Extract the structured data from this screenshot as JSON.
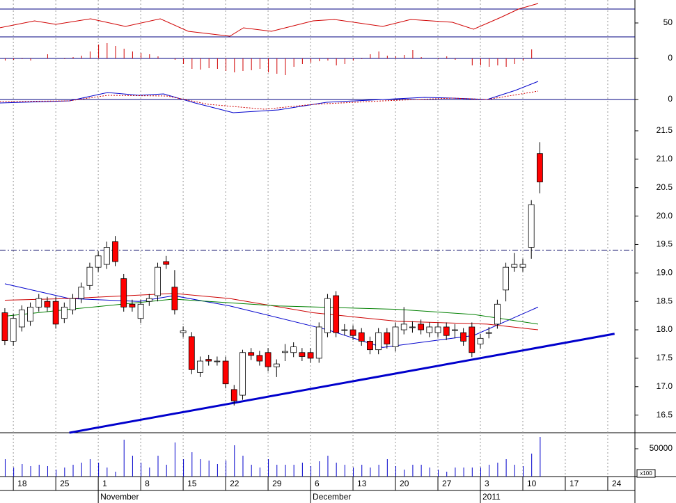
{
  "chart_data": [
    {
      "type": "line",
      "ylim": [
        30,
        83
      ],
      "yticks": [
        50
      ],
      "reference_lines": [
        70,
        30
      ],
      "series": [
        {
          "color": "#d00000",
          "x": [
            -0.6,
            3.5,
            6,
            10.1,
            14.2,
            18.3,
            21.6,
            26.5,
            28.1,
            31.4,
            36.3,
            38.8,
            44.5,
            47.8,
            52.7,
            55.2,
            58.4,
            60.5,
            62.8
          ],
          "values": [
            43,
            53,
            48,
            56,
            45,
            56,
            38,
            31,
            43,
            38,
            53,
            55,
            45,
            55,
            51,
            41,
            58,
            70,
            78
          ]
        }
      ]
    },
    {
      "type": "bar",
      "color": "#d00000",
      "ylim": [
        -29,
        31
      ],
      "yticks": [
        0
      ],
      "reference_lines": [
        0
      ],
      "values": [
        -3,
        -2,
        -1,
        -3,
        0,
        6,
        0,
        -1,
        2,
        4,
        10,
        20,
        22,
        18,
        14,
        10,
        8,
        6,
        3,
        0,
        -2,
        -8,
        -15,
        -16,
        -14,
        -15,
        -18,
        -20,
        -18,
        -17,
        -15,
        -20,
        -22,
        -24,
        -12,
        -8,
        -6,
        -4,
        -3,
        -10,
        -8,
        -3,
        -1,
        6,
        10,
        4,
        3,
        5,
        12,
        2,
        0,
        -1,
        3,
        -2,
        0,
        -10,
        -10,
        -12,
        -10,
        -12,
        -8,
        -3,
        13,
        null
      ]
    },
    {
      "type": "line",
      "ylim": [
        -27,
        30
      ],
      "yticks": [
        0
      ],
      "reference_lines": [
        0
      ],
      "series": [
        {
          "color": "#0000cc",
          "x": [
            -0.6,
            7.6,
            12.1,
            15.8,
            18.7,
            22.4,
            26.9,
            32.2,
            37.9,
            44.5,
            49.4,
            52.7,
            56.8,
            60.1,
            62.8
          ],
          "values": [
            -5,
            -2,
            10,
            6,
            8,
            -5,
            -19,
            -15,
            -4,
            0,
            3,
            2,
            0,
            13,
            26
          ]
        },
        {
          "color": "#d00000",
          "dash": true,
          "x": [
            -0.6,
            7.6,
            12.1,
            19.1,
            24,
            30.6,
            36.3,
            44.5,
            52.7,
            56.8,
            62.8
          ],
          "values": [
            -3,
            -2,
            6,
            5,
            -7,
            -14,
            -7,
            -2,
            2,
            0,
            12
          ]
        }
      ]
    },
    {
      "type": "candlestick",
      "up_color": "#ffffff",
      "down_color": "#ff0000",
      "ylim": [
        16.19,
        21.72
      ],
      "yticks": [
        16.5,
        {
          "value": 17,
          "label": "17.0"
        },
        17.5,
        {
          "value": 18,
          "label": "18.0"
        },
        18.5,
        {
          "value": 19,
          "label": "19.0"
        },
        19.5,
        {
          "value": 20,
          "label": "20.0"
        },
        20.5,
        {
          "value": 21,
          "label": "21.0"
        },
        21.5
      ],
      "reference_lines": [
        19.4
      ],
      "open": [
        18.3,
        17.8,
        18.05,
        18.15,
        18.4,
        18.5,
        18.5,
        18.2,
        18.35,
        18.55,
        18.78,
        19.1,
        19.15,
        19.55,
        18.9,
        18.45,
        18.2,
        18.5,
        18.6,
        19.2,
        18.75,
        17.95,
        17.88,
        17.25,
        17.48,
        17.45,
        17.45,
        16.95,
        16.85,
        17.6,
        17.55,
        17.6,
        17.35,
        17.6,
        17.6,
        17.6,
        17.6,
        17.5,
        17.95,
        18.6,
        18.0,
        18.0,
        17.95,
        17.8,
        17.65,
        17.95,
        17.7,
        18.0,
        18.05,
        18.1,
        17.95,
        17.95,
        18.05,
        18.0,
        17.95,
        18.05,
        17.75,
        17.95,
        18.1,
        18.7,
        19.1,
        19.1,
        19.45,
        21.1
      ],
      "high": [
        18.38,
        18.28,
        18.43,
        18.48,
        18.63,
        18.58,
        18.58,
        18.48,
        18.63,
        18.83,
        19.18,
        19.38,
        19.55,
        19.65,
        18.98,
        18.53,
        18.53,
        18.63,
        19.18,
        19.3,
        19.05,
        18.06,
        17.96,
        17.53,
        17.56,
        17.53,
        17.53,
        17.03,
        17.65,
        17.68,
        17.63,
        17.68,
        17.48,
        17.75,
        17.78,
        17.68,
        17.68,
        18.13,
        18.63,
        18.68,
        18.1,
        18.08,
        18.03,
        17.88,
        18.03,
        18.03,
        18.13,
        18.4,
        18.15,
        18.18,
        18.13,
        18.13,
        18.13,
        18.1,
        18.03,
        18.13,
        17.93,
        18.05,
        18.53,
        19.18,
        19.35,
        19.25,
        20.28,
        21.3
      ],
      "low": [
        17.73,
        17.72,
        17.97,
        18.07,
        18.32,
        18.32,
        18.02,
        18.12,
        18.27,
        18.47,
        18.7,
        19.02,
        19.07,
        19.12,
        18.32,
        18.32,
        18.12,
        18.42,
        18.5,
        19.07,
        18.27,
        17.87,
        17.22,
        17.17,
        17.37,
        17.37,
        16.97,
        16.67,
        16.77,
        17.47,
        17.37,
        17.27,
        17.17,
        17.45,
        17.52,
        17.45,
        17.42,
        17.42,
        17.87,
        17.87,
        17.9,
        17.82,
        17.72,
        17.57,
        17.57,
        17.67,
        17.62,
        17.92,
        17.95,
        17.92,
        17.87,
        17.87,
        17.82,
        17.85,
        17.72,
        17.52,
        17.67,
        17.85,
        18.02,
        18.5,
        19.02,
        19.02,
        19.25,
        20.4
      ],
      "close": [
        17.81,
        18.2,
        18.35,
        18.4,
        18.55,
        18.4,
        18.1,
        18.4,
        18.55,
        18.75,
        19.1,
        19.3,
        19.45,
        19.2,
        18.4,
        18.4,
        18.45,
        18.55,
        19.1,
        19.15,
        18.35,
        17.98,
        17.3,
        17.45,
        17.45,
        17.45,
        17.05,
        16.75,
        17.6,
        17.55,
        17.45,
        17.35,
        17.4,
        17.62,
        17.7,
        17.53,
        17.5,
        18.05,
        18.55,
        17.95,
        18.0,
        17.9,
        17.8,
        17.65,
        17.95,
        17.75,
        18.05,
        18.1,
        18.05,
        18.0,
        18.05,
        18.05,
        17.9,
        18.0,
        17.8,
        17.6,
        17.85,
        17.95,
        18.45,
        19.1,
        19.15,
        19.15,
        20.2,
        20.6
      ],
      "series": [
        {
          "color": "#0000cc",
          "x": [
            0,
            7.6,
            15.8,
            19.9,
            26.5,
            38,
            44.5,
            55.2,
            62.8
          ],
          "values": [
            18.81,
            18.55,
            18.5,
            18.6,
            18.42,
            18.0,
            17.69,
            17.9,
            18.4
          ]
        },
        {
          "color": "#cc0000",
          "x": [
            0,
            7.6,
            19.9,
            26.5,
            36.3,
            46.2,
            56.8,
            62.8
          ],
          "values": [
            18.52,
            18.55,
            18.64,
            18.55,
            18.3,
            18.15,
            18.1,
            18.0
          ]
        },
        {
          "color": "#008000",
          "x": [
            0,
            7.6,
            19.9,
            32.2,
            46.2,
            55.2,
            62.8
          ],
          "values": [
            18.24,
            18.36,
            18.54,
            18.42,
            18.36,
            18.27,
            18.1
          ]
        },
        {
          "color": "#0000cc",
          "width": 3,
          "x": [
            7.6,
            71.8
          ],
          "values": [
            16.19,
            17.93
          ]
        }
      ]
    },
    {
      "type": "bar",
      "color": "#0000cc",
      "ylim": [
        0,
        78750
      ],
      "yticks": [
        50000
      ],
      "unit_label": "x100",
      "values": [
        31250,
        16250,
        22500,
        18750,
        21250,
        18750,
        12500,
        16250,
        21250,
        25000,
        31250,
        25000,
        16250,
        8750,
        66250,
        37500,
        25000,
        16250,
        37500,
        21250,
        61250,
        31250,
        43750,
        31250,
        28750,
        22500,
        28750,
        56250,
        37500,
        21250,
        16250,
        31250,
        21250,
        21250,
        21250,
        25000,
        18750,
        27500,
        37500,
        25000,
        21250,
        16250,
        21250,
        16250,
        21250,
        31250,
        18750,
        12500,
        21250,
        21250,
        16250,
        12500,
        8750,
        16250,
        16250,
        16250,
        16250,
        21250,
        25000,
        31250,
        21250,
        18750,
        41250,
        71250
      ],
      "xlim": [
        -0.57,
        74.2
      ],
      "xticks": [
        {
          "value": 1,
          "label": "18"
        },
        {
          "value": 6,
          "label": "25"
        },
        {
          "value": 11,
          "label": "1"
        },
        {
          "value": 16,
          "label": "8"
        },
        {
          "value": 21,
          "label": "15"
        },
        {
          "value": 26,
          "label": "22"
        },
        {
          "value": 31,
          "label": "29"
        },
        {
          "value": 36,
          "label": "6"
        },
        {
          "value": 41,
          "label": "13"
        },
        {
          "value": 46,
          "label": "20"
        },
        {
          "value": 51,
          "label": "27"
        },
        {
          "value": 56,
          "label": "3"
        },
        {
          "value": 61,
          "label": "10"
        },
        {
          "value": 66,
          "label": "17"
        },
        {
          "value": 71,
          "label": "24"
        }
      ],
      "month_labels": [
        {
          "value": 11,
          "label": "November"
        },
        {
          "value": 36,
          "label": "December"
        },
        {
          "value": 56,
          "label": "2011"
        }
      ]
    }
  ]
}
